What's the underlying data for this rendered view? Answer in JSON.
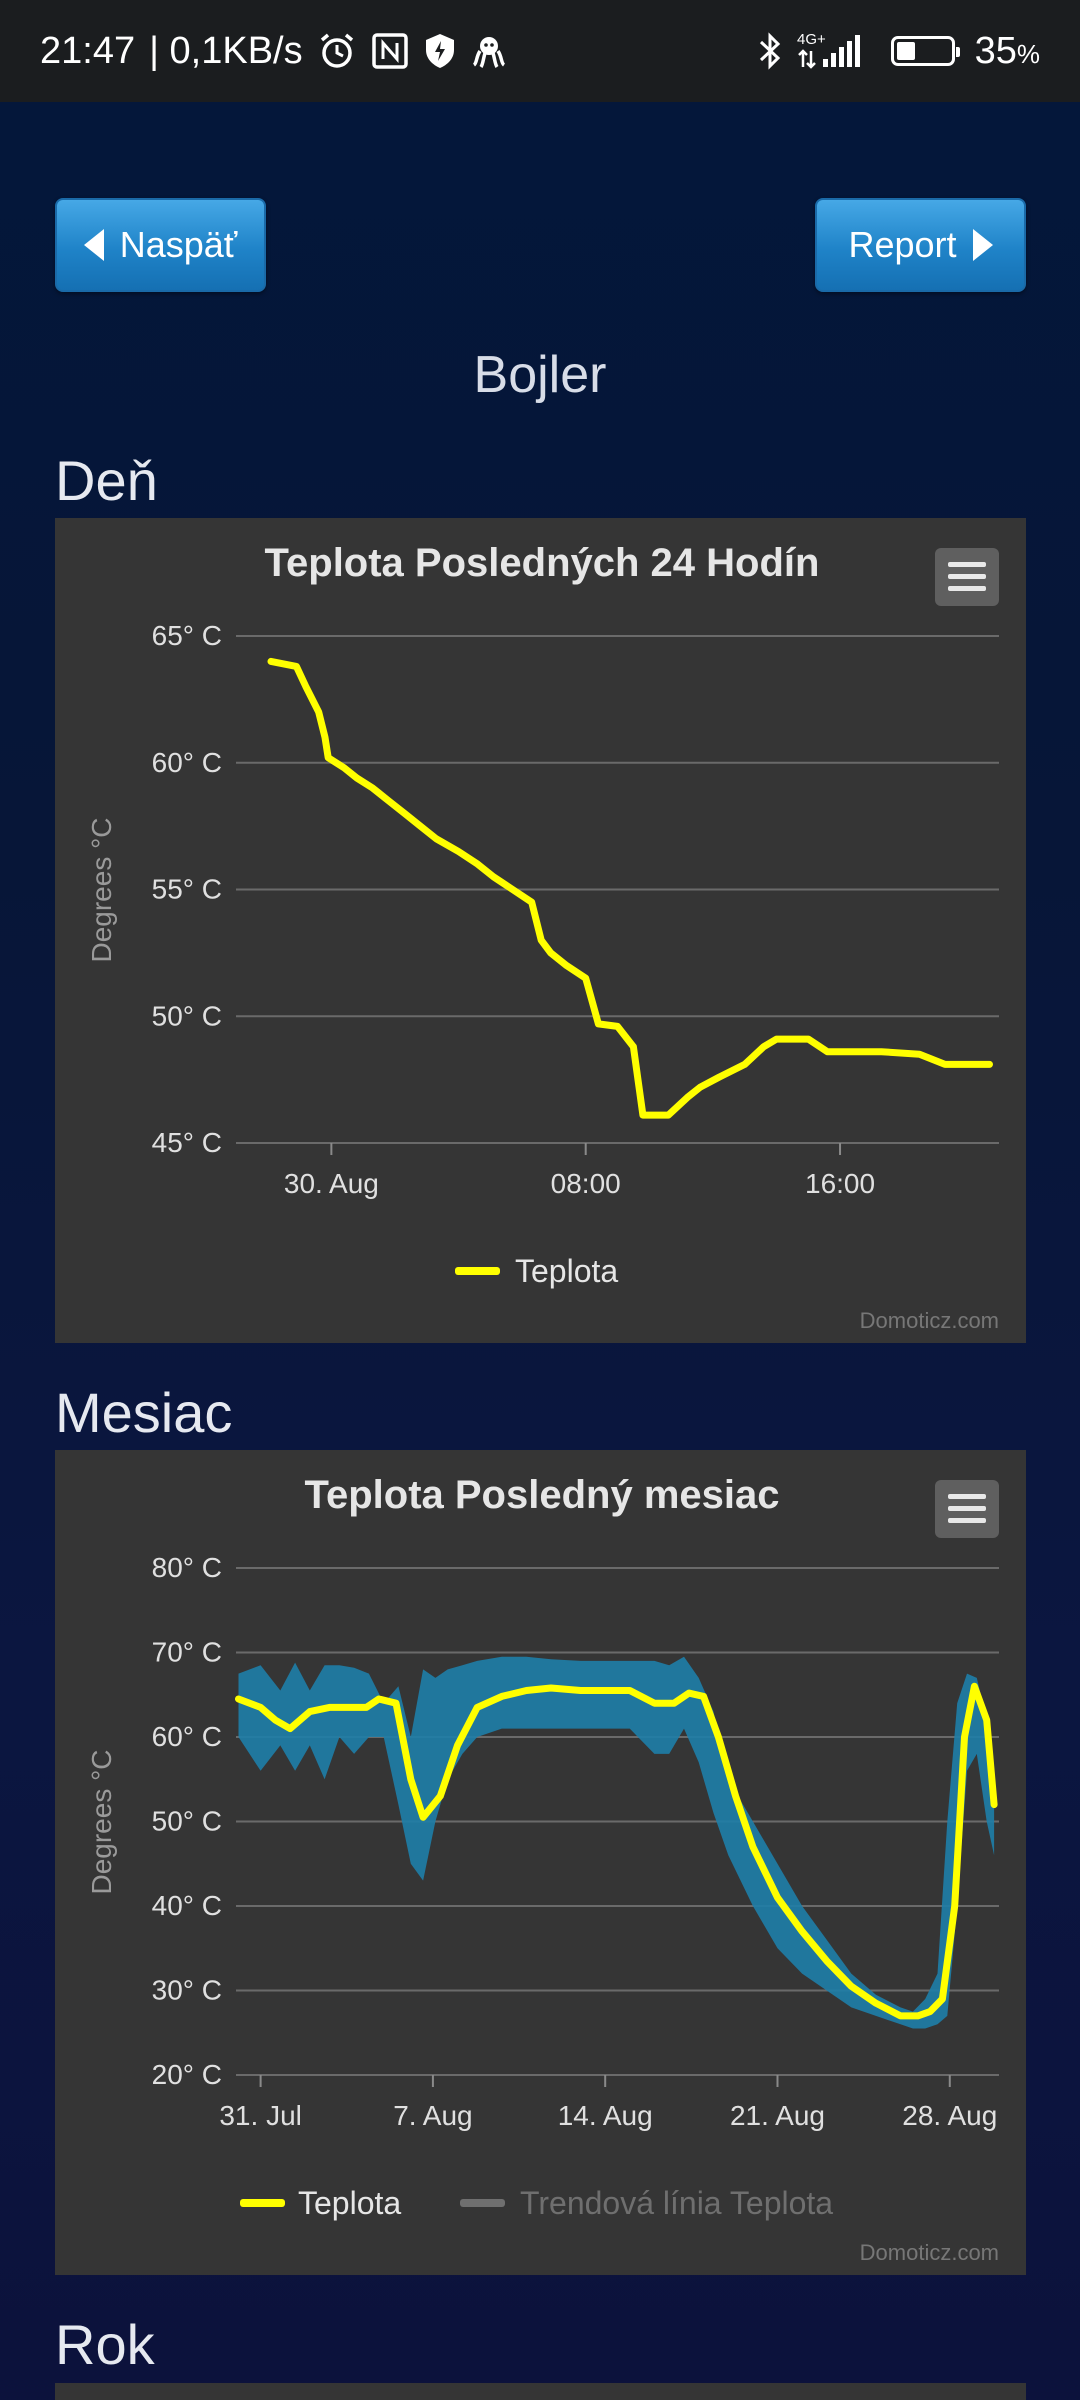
{
  "status_bar": {
    "time": "21:47",
    "network_speed": "| 0,1KB/s",
    "network_type": "4G+",
    "battery_percent": "35",
    "battery_percent_sign": "%",
    "battery_level": 0.35
  },
  "nav": {
    "back_label": "Naspäť",
    "report_label": "Report"
  },
  "page_title": "Bojler",
  "sections": {
    "day_label": "Deň",
    "month_label": "Mesiac",
    "year_label": "Rok"
  },
  "chart_day": {
    "title": "Teplota Posledných 24 Hodín",
    "ylabel": "Degrees °C",
    "credit": "Domoticz.com",
    "y_tick_labels": [
      "65° C",
      "60° C",
      "55° C",
      "50° C",
      "45° C"
    ],
    "x_tick_labels": [
      "30. Aug",
      "08:00",
      "16:00"
    ],
    "legend": [
      "Teplota"
    ]
  },
  "chart_month": {
    "title": "Teplota Posledný mesiac",
    "ylabel": "Degrees °C",
    "credit": "Domoticz.com",
    "y_tick_labels": [
      "80° C",
      "70° C",
      "60° C",
      "50° C",
      "40° C",
      "30° C",
      "20° C"
    ],
    "x_tick_labels": [
      "31. Jul",
      "7. Aug",
      "14. Aug",
      "21. Aug",
      "28. Aug"
    ],
    "legend": [
      "Teplota",
      "Trendová línia Teplota"
    ]
  },
  "chart_data": [
    {
      "type": "line",
      "title": "Teplota Posledných 24 Hodín",
      "ylabel": "Degrees °C",
      "ylim": [
        45,
        65
      ],
      "y_ticks": [
        45,
        50,
        55,
        60,
        65
      ],
      "x_unit": "hours since 21:00 (29. Aug)",
      "xlim": [
        0,
        24
      ],
      "x_ticks": [
        3,
        11,
        19
      ],
      "x_tick_labels": [
        "30. Aug",
        "08:00",
        "16:00"
      ],
      "series": [
        {
          "name": "Teplota",
          "color": "#ffff00",
          "x": [
            1.1,
            1.9,
            2.2,
            2.6,
            2.8,
            2.9,
            3.4,
            3.8,
            4.3,
            4.8,
            5.3,
            5.8,
            6.3,
            7.0,
            7.6,
            8.1,
            8.7,
            9.3,
            9.6,
            9.9,
            10.4,
            11.0,
            11.4,
            12.0,
            12.5,
            12.8,
            13.6,
            14.2,
            14.6,
            15.2,
            16.0,
            16.6,
            17.0,
            18.0,
            18.6,
            19.6,
            20.3,
            21.5,
            22.3,
            23.7
          ],
          "y": [
            64,
            63.8,
            63,
            62,
            61,
            60.2,
            59.8,
            59.4,
            59,
            58.5,
            58,
            57.5,
            57,
            56.5,
            56,
            55.5,
            55,
            54.5,
            53,
            52.5,
            52,
            51.5,
            49.7,
            49.6,
            48.8,
            46.1,
            46.1,
            46.8,
            47.2,
            47.6,
            48.1,
            48.8,
            49.1,
            49.1,
            48.6,
            48.6,
            48.6,
            48.5,
            48.1,
            48.1
          ]
        }
      ],
      "legend": "bottom-center",
      "grid": true
    },
    {
      "type": "area",
      "title": "Teplota Posledný mesiac",
      "ylabel": "Degrees °C",
      "ylim": [
        20,
        80
      ],
      "y_ticks": [
        20,
        30,
        40,
        50,
        60,
        70,
        80
      ],
      "x_unit": "days since 30. Jul",
      "xlim": [
        0,
        31
      ],
      "x_ticks": [
        1,
        8,
        15,
        22,
        29
      ],
      "x_tick_labels": [
        "31. Jul",
        "7. Aug",
        "14. Aug",
        "21. Aug",
        "28. Aug"
      ],
      "series": [
        {
          "name": "Teplota",
          "color": "#ffff00",
          "x": [
            0.1,
            1.0,
            1.6,
            2.2,
            3.0,
            3.8,
            4.6,
            5.3,
            5.8,
            6.5,
            7.1,
            7.6,
            8.3,
            9.0,
            9.8,
            10.8,
            11.8,
            12.8,
            14.0,
            15.0,
            16.0,
            17.0,
            17.8,
            18.4,
            19.0,
            19.6,
            20.3,
            21.0,
            22.0,
            23.0,
            24.0,
            25.0,
            26.0,
            27.0,
            27.7,
            28.2,
            28.7,
            29.2,
            29.6,
            30.0,
            30.5,
            30.8
          ],
          "y": [
            64.5,
            63.5,
            62,
            61,
            63,
            63.5,
            63.5,
            63.5,
            64.5,
            64,
            55,
            50.5,
            53,
            59,
            63.5,
            64.8,
            65.5,
            65.8,
            65.5,
            65.5,
            65.5,
            64,
            64,
            65.2,
            64.8,
            60,
            53,
            47,
            41,
            37,
            33.5,
            30.5,
            28.5,
            27,
            27,
            27.5,
            29,
            40,
            60,
            66,
            62,
            52
          ]
        },
        {
          "name": "Trendová línia Teplota",
          "color": "#777777",
          "visible": false,
          "x": [],
          "y": []
        }
      ],
      "range_band": {
        "color": "#1e7ea8",
        "x": [
          0.1,
          1.0,
          1.8,
          2.4,
          3.0,
          3.6,
          4.2,
          4.8,
          5.4,
          6.0,
          6.6,
          7.1,
          7.6,
          8.1,
          8.6,
          9.2,
          9.8,
          10.8,
          11.8,
          12.8,
          14.0,
          15.0,
          16.0,
          17.0,
          17.6,
          18.2,
          18.8,
          19.4,
          20.0,
          21.0,
          22.0,
          23.0,
          24.0,
          25.0,
          26.0,
          27.0,
          27.5,
          28.0,
          28.5,
          28.9,
          29.3,
          29.7,
          30.1,
          30.5,
          30.8
        ],
        "high": [
          67.5,
          68.5,
          65.5,
          68.8,
          65.5,
          68.5,
          68.5,
          68.2,
          67.5,
          64,
          66,
          60,
          68,
          67,
          68,
          68.5,
          69,
          69.5,
          69.5,
          69.2,
          69,
          69,
          69,
          69,
          68.5,
          69.5,
          67,
          63,
          55,
          50,
          45,
          40,
          36,
          32,
          29.5,
          28,
          27.5,
          29,
          32,
          50,
          64,
          67.5,
          67,
          62,
          56
        ],
        "low": [
          60,
          56,
          59,
          56,
          59,
          55,
          60,
          58,
          60,
          60,
          52,
          45,
          43,
          50,
          55,
          58,
          60,
          61,
          61,
          61,
          61,
          61,
          61,
          58,
          58,
          61,
          57,
          51,
          46,
          40,
          35,
          32,
          30,
          28,
          27,
          26,
          25.5,
          25.5,
          26,
          27,
          40,
          56,
          58,
          50,
          46
        ]
      },
      "legend": "bottom-center",
      "grid": true
    }
  ]
}
